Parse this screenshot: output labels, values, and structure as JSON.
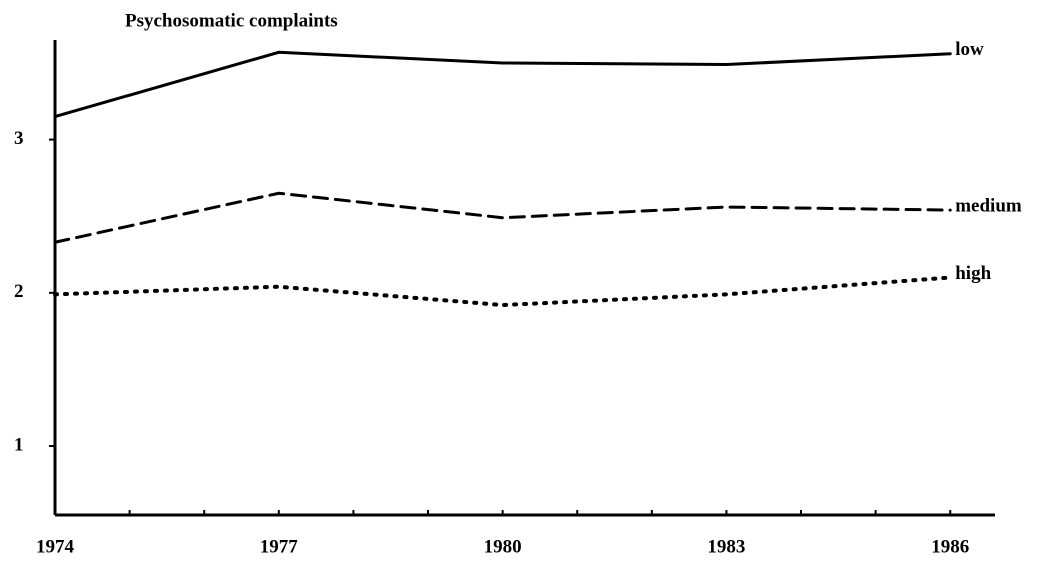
{
  "chart_data": {
    "type": "line",
    "title": "Psychosomatic complaints",
    "x": [
      1974,
      1977,
      1980,
      1983,
      1986
    ],
    "xlim": [
      1974,
      1986.6
    ],
    "xticks": [
      1974,
      1977,
      1980,
      1983,
      1986
    ],
    "xminorticks": [
      1975,
      1976,
      1978,
      1979,
      1981,
      1982,
      1984,
      1985
    ],
    "ylim": [
      0.55,
      3.65
    ],
    "yticks": [
      1,
      2,
      3
    ],
    "grid": false,
    "series": [
      {
        "name": "low",
        "color": "#000000",
        "line_style": "solid",
        "values": [
          3.15,
          3.57,
          3.5,
          3.49,
          3.56
        ]
      },
      {
        "name": "medium",
        "color": "#000000",
        "line_style": "dashed",
        "values": [
          2.33,
          2.65,
          2.49,
          2.56,
          2.54
        ]
      },
      {
        "name": "high",
        "color": "#000000",
        "line_style": "dotted",
        "values": [
          1.99,
          2.04,
          1.92,
          1.99,
          2.1
        ]
      }
    ]
  }
}
